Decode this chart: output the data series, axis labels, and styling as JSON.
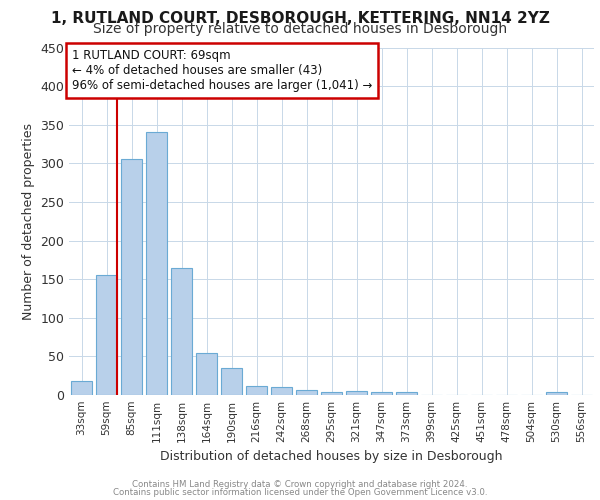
{
  "title1": "1, RUTLAND COURT, DESBOROUGH, KETTERING, NN14 2YZ",
  "title2": "Size of property relative to detached houses in Desborough",
  "xlabel": "Distribution of detached houses by size in Desborough",
  "ylabel": "Number of detached properties",
  "categories": [
    "33sqm",
    "59sqm",
    "85sqm",
    "111sqm",
    "138sqm",
    "164sqm",
    "190sqm",
    "216sqm",
    "242sqm",
    "268sqm",
    "295sqm",
    "321sqm",
    "347sqm",
    "373sqm",
    "399sqm",
    "425sqm",
    "451sqm",
    "478sqm",
    "504sqm",
    "530sqm",
    "556sqm"
  ],
  "values": [
    18,
    155,
    305,
    340,
    165,
    55,
    35,
    12,
    10,
    6,
    4,
    5,
    4,
    4,
    0,
    0,
    0,
    0,
    0,
    4,
    0
  ],
  "bar_color": "#b8d0ea",
  "bar_edgecolor": "#6aaad4",
  "vline_color": "#cc0000",
  "vline_bar_index": 1,
  "annotation_box_text": "1 RUTLAND COURT: 69sqm\n← 4% of detached houses are smaller (43)\n96% of semi-detached houses are larger (1,041) →",
  "annotation_box_color": "#cc0000",
  "annotation_box_bg": "#ffffff",
  "ylim": [
    0,
    450
  ],
  "yticks": [
    0,
    50,
    100,
    150,
    200,
    250,
    300,
    350,
    400,
    450
  ],
  "footer1": "Contains HM Land Registry data © Crown copyright and database right 2024.",
  "footer2": "Contains public sector information licensed under the Open Government Licence v3.0.",
  "bg_color": "#ffffff",
  "grid_color": "#c8d8e8",
  "title_fontsize": 11,
  "subtitle_fontsize": 10,
  "bar_width": 0.85
}
